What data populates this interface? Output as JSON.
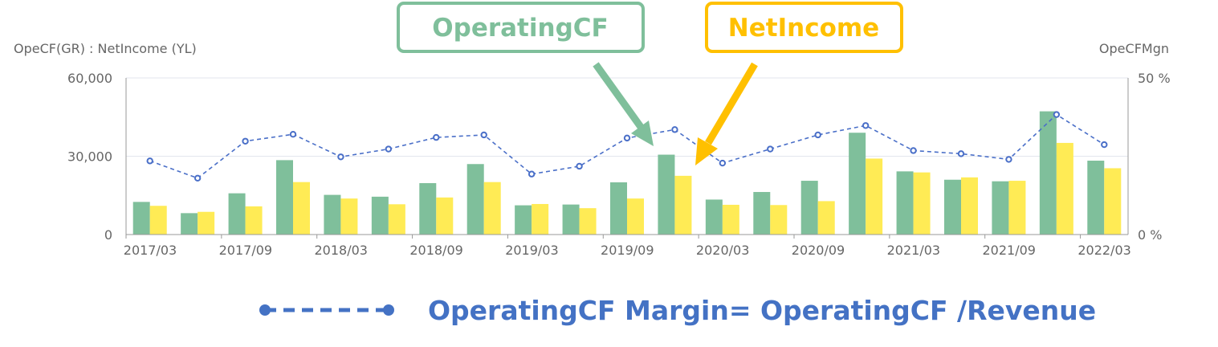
{
  "chart_data": {
    "type": "bar",
    "title": "",
    "left_axis_label": "OpeCF(GR) : NetIncome  (YL)",
    "right_axis_label": "OpeCFMgn",
    "ylim_left": [
      0,
      60000
    ],
    "ylim_right": [
      0,
      50
    ],
    "left_tick_labels": [
      "60,000",
      "30,000",
      "0"
    ],
    "right_tick_labels": [
      "50 %",
      "0 %"
    ],
    "x_tick_labels": [
      "2017/03",
      "2017/09",
      "2018/03",
      "2018/09",
      "2019/03",
      "2019/09",
      "2020/03",
      "2020/09",
      "2021/03",
      "2021/09",
      "2022/03"
    ],
    "categories": [
      "2017/03",
      "2017/06",
      "2017/09",
      "2017/12",
      "2018/03",
      "2018/06",
      "2018/09",
      "2018/12",
      "2019/03",
      "2019/06",
      "2019/09",
      "2019/12",
      "2020/03",
      "2020/06",
      "2020/09",
      "2020/12",
      "2021/03",
      "2021/06",
      "2021/09",
      "2021/12",
      "2022/03"
    ],
    "series": [
      {
        "name": "OperatingCF",
        "kind": "bar",
        "axis": "left",
        "color": "#7fbf9b",
        "values": [
          12500,
          8200,
          15800,
          28500,
          15200,
          14500,
          19700,
          27000,
          11200,
          11500,
          20000,
          30600,
          13400,
          16300,
          20600,
          39000,
          24200,
          21000,
          20400,
          47200,
          28300
        ]
      },
      {
        "name": "NetIncome",
        "kind": "bar",
        "axis": "left",
        "color": "#ffeb55",
        "values": [
          11000,
          8700,
          10800,
          20100,
          13800,
          11600,
          14200,
          20100,
          11700,
          10100,
          13800,
          22500,
          11400,
          11300,
          12800,
          29100,
          23800,
          21900,
          20600,
          35100,
          25400
        ]
      },
      {
        "name": "OperatingCF Margin",
        "kind": "line",
        "axis": "right",
        "color": "#4a6fc8",
        "values": [
          23.5,
          18.0,
          29.8,
          32.0,
          24.8,
          27.3,
          31.0,
          31.8,
          19.3,
          21.8,
          30.8,
          33.5,
          22.8,
          27.3,
          31.8,
          34.8,
          26.8,
          25.8,
          24.0,
          38.3,
          28.7
        ]
      }
    ],
    "grid": true
  },
  "callouts": {
    "operating_cf": {
      "label": "OperatingCF",
      "color": "#7fbf9b"
    },
    "net_income": {
      "label": "NetIncome",
      "color": "#ffc000"
    }
  },
  "legend": {
    "label": "OperatingCF Margin= OperatingCF /Revenue",
    "color": "#4472c4"
  }
}
